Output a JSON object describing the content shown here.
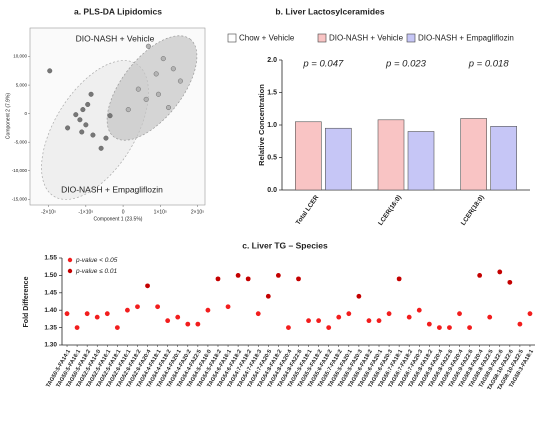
{
  "chart_data": [
    {
      "type": "scatter",
      "title": "a. PLS-DA Lipidomics",
      "xlabel": "Component 1 (23.5%)",
      "ylabel": "Component 2 (7.9%)",
      "xlim": [
        -250000,
        220000
      ],
      "ylim": [
        -16000,
        15000
      ],
      "xticks": [
        {
          "value": -200000,
          "label": "-2×10⁵"
        },
        {
          "value": -100000,
          "label": "-1×10⁵"
        },
        0,
        {
          "value": 100000,
          "label": "1×10⁵"
        },
        {
          "value": 200000,
          "label": "2×10⁵"
        }
      ],
      "yticks": [
        {
          "value": 10000,
          "label": "10,000"
        },
        {
          "value": 5000,
          "label": "5,000"
        },
        0,
        {
          "value": -5000,
          "label": "-5,000"
        },
        {
          "value": -10000,
          "label": "-10,000"
        },
        {
          "value": -15000,
          "label": "-15,000"
        }
      ],
      "series": [
        {
          "name": "DIO-NASH + Vehicle",
          "color": "#b4b4b4",
          "x": [
            68000,
            108000,
            89000,
            135000,
            154000,
            41000,
            95000,
            62000,
            14000,
            122000
          ],
          "y": [
            11800,
            9640,
            6960,
            7860,
            5710,
            4290,
            3390,
            2500,
            710,
            1070
          ]
        },
        {
          "name": "DIO-NASH + Empagliflozin",
          "color": "#777777",
          "x": [
            -197000,
            -86000,
            -95000,
            -108000,
            -127000,
            -116000,
            -100000,
            -149000,
            -111000,
            -81000,
            -46000,
            -59000,
            -35000
          ],
          "y": [
            7500,
            3390,
            1610,
            710,
            -180,
            -1070,
            -1960,
            -2500,
            -3210,
            -3750,
            -4290,
            -6070,
            -360
          ]
        }
      ]
    },
    {
      "type": "bar",
      "title": "b. Liver Lactosylceramides",
      "ylabel": "Relative Concentration",
      "categories": [
        "Total LCER",
        "LCER(16:0)",
        "LCER(18:0)"
      ],
      "annotations": [
        "p = 0.047",
        "p = 0.023",
        "p = 0.018"
      ],
      "ylim": [
        0,
        2
      ],
      "yticks": [
        {
          "value": 0,
          "label": "0.0"
        },
        0.5,
        {
          "value": 1,
          "label": "1.0"
        },
        1.5,
        {
          "value": 2,
          "label": "2.0"
        }
      ],
      "series": [
        {
          "name": "Chow + Vehicle",
          "color": "#ffffff",
          "values": [
            null,
            null,
            null
          ]
        },
        {
          "name": "DIO-NASH + Vehicle",
          "color": "#f9c4c4",
          "values": [
            1.05,
            1.08,
            1.1
          ]
        },
        {
          "name": "DIO-NASH + Empagliflozin",
          "color": "#c6c6f6",
          "values": [
            0.95,
            0.9,
            0.98
          ]
        }
      ]
    },
    {
      "type": "dot",
      "title": "c. Liver TG – Species",
      "ylabel": "Fold Difference",
      "ylim": [
        1.3,
        1.55
      ],
      "yticks": [
        {
          "value": 1.3,
          "label": "1.30"
        },
        1.35,
        {
          "value": 1.4,
          "label": "1.40"
        },
        1.45,
        {
          "value": 1.5,
          "label": "1.50"
        },
        1.55
      ],
      "categories": [
        "TAG50:5-FA14:1",
        "TAG50:5-FA16:1",
        "TAG50:5-FA18:2",
        "TAG52:5-FA14:0",
        "TAG52:5-FA16:1",
        "TAG52:5-FA18:1",
        "TAG52:6-FA16:1",
        "TAG52:6-FA18:2",
        "TAG52:6-FA20:4",
        "TAG54:4-FA18:1",
        "TAG54:4-FA18:2",
        "TAG54:4-FA20:1",
        "TAG54:4-FA20:2",
        "TAG54:4-FA22:5",
        "TAG54:5-FA16:0",
        "TAG54:5-FA18:2",
        "TAG54:6-FA16:1",
        "TAG54:6-FA18:2",
        "TAG54:7-FA18:2",
        "TAG54:7-FA18:3",
        "TAG54:7-FA20:5",
        "TAG54:8-FA18:2",
        "TAG54:8-FA20:4",
        "TAG54:8-FA22:6",
        "TAG55:5-FA18:1",
        "TAG55:5-FA18:2",
        "TAG55:6-FA18:2",
        "TAG55:7-FA18:2",
        "TAG56:5-FA20:1",
        "TAG56:5-FA20:3",
        "TAG56:6-FA18:2",
        "TAG56:6-FA20:1",
        "TAG56:6-FA20:3",
        "TAG56:7-FA18:1",
        "TAG56:7-FA18:2",
        "TAG56:7-FA20:3",
        "TAG56:8-FA18:2",
        "TAG56:8-FA20:4",
        "TAG56:8-FA22:6",
        "TAG56:9-FA20:4",
        "TAG56:9-FA22:6",
        "TAG58:8-FA20:4",
        "TAG58:8-FA22:5",
        "TAG58:9-FA22:6",
        "TAG58:10-FA22:6",
        "TAG58:10-FA22:5",
        "TAG58:3-FA18:1"
      ],
      "series": [
        {
          "name": "p-value < 0.05",
          "color": "#f21d1d",
          "values": [
            1.39,
            1.35,
            1.39,
            1.38,
            1.39,
            1.35,
            1.4,
            1.41,
            null,
            1.41,
            1.37,
            1.38,
            1.36,
            1.36,
            1.4,
            null,
            1.41,
            null,
            null,
            1.39,
            null,
            null,
            1.35,
            null,
            1.37,
            1.37,
            1.35,
            1.38,
            1.39,
            null,
            1.37,
            1.37,
            1.39,
            null,
            1.38,
            1.4,
            1.36,
            1.35,
            1.35,
            1.39,
            1.35,
            null,
            1.38,
            null,
            null,
            1.36,
            1.39
          ]
        },
        {
          "name": "p-value ≤ 0.01",
          "color": "#c40000",
          "values": [
            null,
            null,
            null,
            null,
            null,
            null,
            null,
            null,
            1.47,
            null,
            null,
            null,
            null,
            null,
            null,
            1.49,
            null,
            1.5,
            1.49,
            null,
            1.44,
            1.5,
            null,
            1.49,
            null,
            null,
            null,
            null,
            null,
            1.44,
            null,
            null,
            null,
            1.49,
            null,
            null,
            null,
            null,
            null,
            null,
            null,
            1.5,
            null,
            1.51,
            1.48,
            null,
            null
          ]
        }
      ]
    }
  ]
}
